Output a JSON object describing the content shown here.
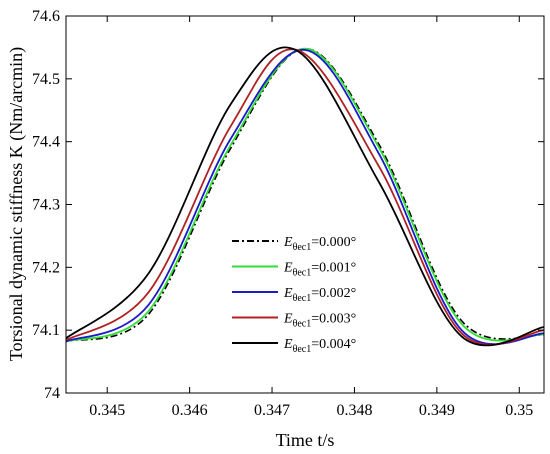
{
  "chart_data": {
    "type": "line",
    "xlabel": "Time t/s",
    "ylabel": "Torsional dynamic stiffness K (Nm/arcmin)",
    "xlim": [
      0.3445,
      0.3503
    ],
    "ylim": [
      74.0,
      74.6
    ],
    "xticks": [
      0.345,
      0.346,
      0.347,
      0.348,
      0.349,
      0.35
    ],
    "xtick_labels": [
      "0.345",
      "0.346",
      "0.347",
      "0.348",
      "0.349",
      "0.35"
    ],
    "yticks": [
      74.0,
      74.1,
      74.2,
      74.3,
      74.4,
      74.5,
      74.6
    ],
    "ytick_labels": [
      "74",
      "74.1",
      "74.2",
      "74.3",
      "74.4",
      "74.5",
      "74.6"
    ],
    "grid": false,
    "legend_position": "lower-center",
    "series": [
      {
        "label_main": "E",
        "label_sub": "θec1",
        "label_value": "=0.000°",
        "color": "#000000",
        "style": "dashdot",
        "x": [
          0.3445,
          0.3455,
          0.3465,
          0.3474,
          0.3483,
          0.3493,
          0.3503
        ],
        "y": [
          74.082,
          74.125,
          74.39,
          74.548,
          74.395,
          74.115,
          74.092
        ]
      },
      {
        "label_main": "E",
        "label_sub": "θec1",
        "label_value": "=0.001°",
        "color": "#33dd33",
        "style": "solid",
        "x": [
          0.3445,
          0.3455,
          0.3465,
          0.3474,
          0.3483,
          0.3493,
          0.3503
        ],
        "y": [
          74.082,
          74.13,
          74.395,
          74.548,
          74.39,
          74.11,
          74.093
        ]
      },
      {
        "label_main": "E",
        "label_sub": "θec1",
        "label_value": "=0.002°",
        "color": "#1a1acc",
        "style": "solid",
        "x": [
          0.3445,
          0.3455,
          0.3465,
          0.3474,
          0.3483,
          0.3493,
          0.3503
        ],
        "y": [
          74.082,
          74.14,
          74.405,
          74.546,
          74.38,
          74.1,
          74.095
        ]
      },
      {
        "label_main": "E",
        "label_sub": "θec1",
        "label_value": "=0.003°",
        "color": "#b22222",
        "style": "solid",
        "x": [
          0.3445,
          0.3455,
          0.3465,
          0.3473,
          0.3483,
          0.3493,
          0.3503
        ],
        "y": [
          74.084,
          74.16,
          74.425,
          74.546,
          74.36,
          74.095,
          74.1
        ]
      },
      {
        "label_main": "E",
        "label_sub": "θec1",
        "label_value": "=0.004°",
        "color": "#000000",
        "style": "solid",
        "x": [
          0.3445,
          0.3455,
          0.3465,
          0.3473,
          0.3483,
          0.3493,
          0.3503
        ],
        "y": [
          74.087,
          74.19,
          74.46,
          74.545,
          74.335,
          74.09,
          74.105
        ]
      }
    ]
  }
}
